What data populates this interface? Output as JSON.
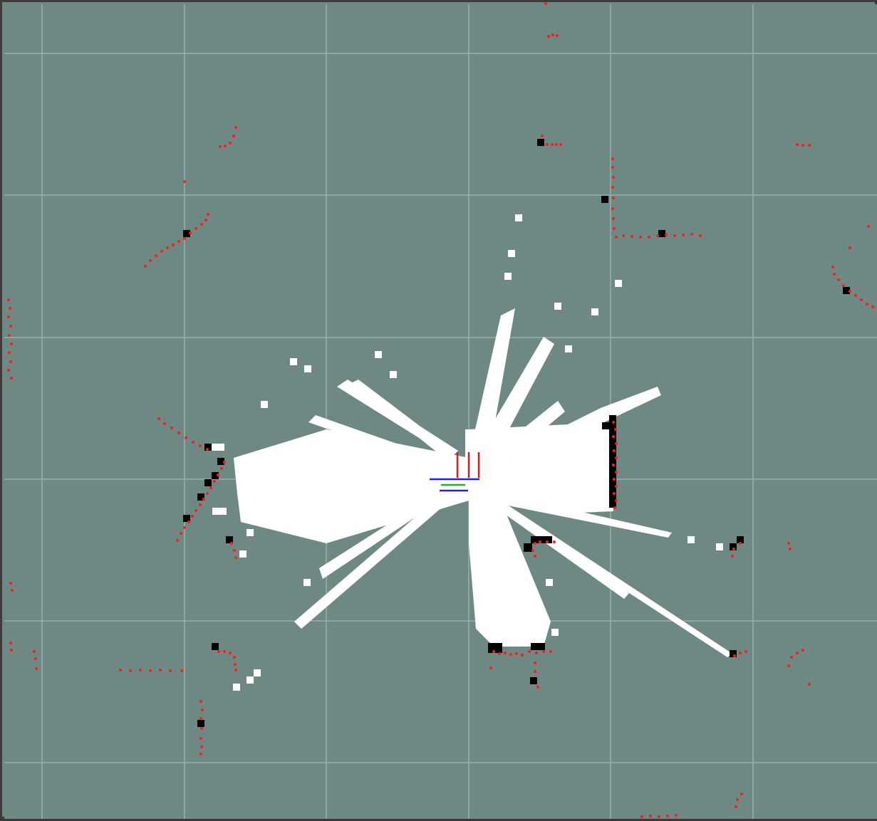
{
  "viewer": {
    "type": "occupancy-grid-map",
    "colors": {
      "unknown": "#6e8984",
      "free": "#ffffff",
      "occupied": "#000000",
      "laser_points": "#ff1a1a",
      "grid_lines": "#a8bcb8",
      "axis_x": "#d42020",
      "axis_y": "#22b322",
      "axis_z": "#2020e0",
      "frame_border": "#3c3c3c"
    },
    "robot": {
      "icon": "robot-tf-frame-icon"
    }
  }
}
